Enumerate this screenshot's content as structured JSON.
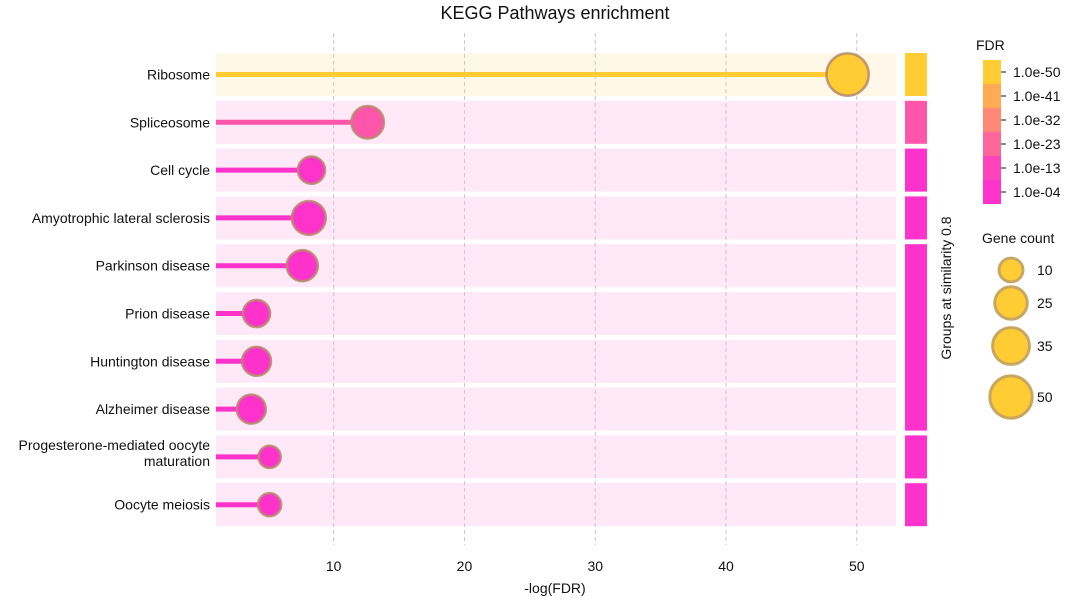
{
  "chart_data": {
    "type": "lollipop",
    "title": "KEGG Pathways enrichment",
    "xlabel": "-log(FDR)",
    "xlim": [
      1,
      53
    ],
    "xticks": [
      10,
      20,
      30,
      40,
      50
    ],
    "grid": "vertical-dashed",
    "categories": [
      {
        "label": "Ribosome",
        "value": 49.3,
        "gene_count": 50,
        "color": "#ffcc33",
        "group": 0
      },
      {
        "label": "Spliceosome",
        "value": 12.6,
        "gene_count": 25,
        "color": "#ff55aa",
        "group": 1
      },
      {
        "label": "Cell cycle",
        "value": 8.3,
        "gene_count": 15,
        "color": "#ff33cc",
        "group": 2
      },
      {
        "label": "Amyotrophic lateral sclerosis",
        "value": 8.1,
        "gene_count": 28,
        "color": "#ff33cc",
        "group": 3
      },
      {
        "label": "Parkinson disease",
        "value": 7.6,
        "gene_count": 22,
        "color": "#ff33cc",
        "group": 4
      },
      {
        "label": "Prion disease",
        "value": 4.1,
        "gene_count": 15,
        "color": "#ff33cc",
        "group": 4
      },
      {
        "label": "Huntington disease",
        "value": 4.1,
        "gene_count": 18,
        "color": "#ff33cc",
        "group": 4
      },
      {
        "label": "Alzheimer disease",
        "value": 3.7,
        "gene_count": 18,
        "color": "#ff33cc",
        "group": 4
      },
      {
        "label": "Progesterone-mediated oocyte maturation",
        "label_lines": [
          "Progesterone-mediated oocyte",
          "maturation"
        ],
        "value": 5.1,
        "gene_count": 8,
        "color": "#ff33cc",
        "group": 5
      },
      {
        "label": "Oocyte meiosis",
        "value": 5.1,
        "gene_count": 9,
        "color": "#ff33cc",
        "group": 6
      }
    ],
    "row_backgrounds": {
      "ribosome": "#fff8e8",
      "other": "#ffe8f7"
    },
    "group_bar_label": "Groups at similarity 0.8",
    "fdr_legend": {
      "title": "FDR",
      "entries": [
        {
          "label": "1.0e-50",
          "color": "#ffcc33"
        },
        {
          "label": "1.0e-41",
          "color": "#ffaa55"
        },
        {
          "label": "1.0e-32",
          "color": "#ff8877"
        },
        {
          "label": "1.0e-23",
          "color": "#ff6699"
        },
        {
          "label": "1.0e-13",
          "color": "#ff44bb"
        },
        {
          "label": "1.0e-04",
          "color": "#ff33cc"
        }
      ]
    },
    "size_legend": {
      "title": "Gene count",
      "entries": [
        {
          "label": "10",
          "count": 10
        },
        {
          "label": "25",
          "count": 25
        },
        {
          "label": "35",
          "count": 35
        },
        {
          "label": "50",
          "count": 50
        }
      ],
      "fill": "#ffcc33",
      "stroke": "#c8a860"
    },
    "marker_stroke": "#b58a6a"
  }
}
